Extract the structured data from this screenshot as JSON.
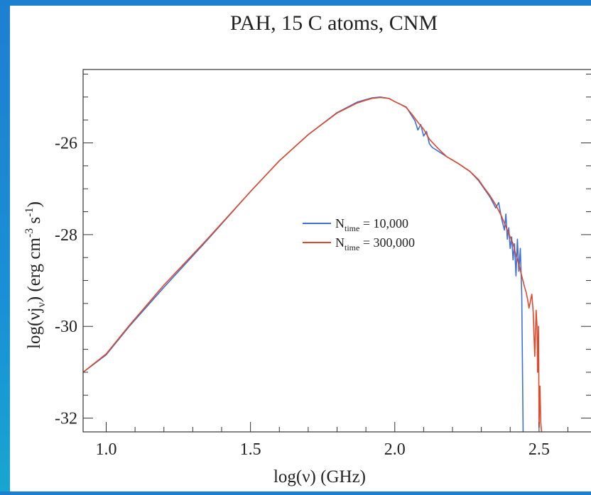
{
  "chart_data": {
    "type": "line",
    "title": "PAH, 15 C atoms, CNM",
    "xlabel": "log(ν) (GHz)",
    "ylabel": "log(νj_ν) (erg cm^-3 s^-1)",
    "ylabel_parts": {
      "pre": "log(νj",
      "sub": "ν",
      "mid": ") (erg cm",
      "sup1": "-3",
      "mid2": " s",
      "sup2": "-1",
      "post": ")"
    },
    "xlim": [
      0.92,
      2.68
    ],
    "ylim": [
      -32.3,
      -24.4
    ],
    "x_ticks": [
      1.0,
      1.5,
      2.0,
      2.5
    ],
    "x_tick_labels": [
      "1.0",
      "1.5",
      "2.0",
      "2.5"
    ],
    "y_ticks": [
      -32,
      -30,
      -28,
      -26
    ],
    "y_tick_labels": [
      "-32",
      "-30",
      "-28",
      "-26"
    ],
    "legend_location": "center",
    "series": [
      {
        "name": "N_time = 10,000",
        "name_parts": {
          "base": "N",
          "sub": "time",
          "rest": " = 10,000"
        },
        "color": "#3f6fd8",
        "x": [
          0.92,
          1.0,
          1.08,
          1.2,
          1.35,
          1.5,
          1.6,
          1.7,
          1.8,
          1.87,
          1.92,
          1.95,
          1.98,
          2.0,
          2.02,
          2.04,
          2.06,
          2.07,
          2.08,
          2.09,
          2.1,
          2.11,
          2.12,
          2.13,
          2.15,
          2.18,
          2.22,
          2.26,
          2.29,
          2.31,
          2.33,
          2.35,
          2.36,
          2.37,
          2.38,
          2.385,
          2.39,
          2.395,
          2.4,
          2.405,
          2.41,
          2.415,
          2.42,
          2.425,
          2.43,
          2.435,
          2.44,
          2.445,
          2.45,
          2.455,
          2.46
        ],
        "y": [
          -31.0,
          -30.62,
          -30.0,
          -29.15,
          -28.12,
          -27.06,
          -26.39,
          -25.82,
          -25.34,
          -25.11,
          -25.02,
          -25.0,
          -25.03,
          -25.1,
          -25.16,
          -25.22,
          -25.42,
          -25.52,
          -25.72,
          -25.6,
          -25.85,
          -25.75,
          -26.02,
          -26.1,
          -26.18,
          -26.3,
          -26.45,
          -26.62,
          -26.82,
          -27.0,
          -27.18,
          -27.42,
          -27.3,
          -27.65,
          -27.9,
          -27.55,
          -28.1,
          -27.85,
          -28.3,
          -28.05,
          -28.55,
          -28.2,
          -28.9,
          -28.1,
          -28.8,
          -28.3,
          -29.3,
          -32.4,
          -32.4,
          -32.4,
          -32.4
        ]
      },
      {
        "name": "N_time = 300,000",
        "name_parts": {
          "base": "N",
          "sub": "time",
          "rest": " = 300,000"
        },
        "color": "#e04a2c",
        "x": [
          0.92,
          1.0,
          1.08,
          1.2,
          1.35,
          1.5,
          1.6,
          1.7,
          1.8,
          1.87,
          1.92,
          1.95,
          1.98,
          2.0,
          2.02,
          2.04,
          2.06,
          2.08,
          2.1,
          2.12,
          2.15,
          2.18,
          2.22,
          2.26,
          2.29,
          2.31,
          2.33,
          2.35,
          2.37,
          2.39,
          2.41,
          2.42,
          2.43,
          2.44,
          2.45,
          2.455,
          2.46,
          2.465,
          2.47,
          2.475,
          2.48,
          2.485,
          2.49,
          2.493,
          2.495,
          2.498,
          2.5,
          2.503,
          2.506,
          2.51,
          2.52,
          2.53
        ],
        "y": [
          -31.0,
          -30.6,
          -29.98,
          -29.1,
          -28.1,
          -27.06,
          -26.39,
          -25.82,
          -25.35,
          -25.13,
          -25.03,
          -25.01,
          -25.03,
          -25.1,
          -25.16,
          -25.23,
          -25.38,
          -25.55,
          -25.7,
          -25.92,
          -26.12,
          -26.3,
          -26.45,
          -26.62,
          -26.8,
          -26.98,
          -27.15,
          -27.35,
          -27.6,
          -27.9,
          -28.2,
          -28.45,
          -28.65,
          -28.9,
          -29.15,
          -29.25,
          -29.4,
          -29.6,
          -29.45,
          -29.3,
          -29.7,
          -30.65,
          -29.65,
          -30.0,
          -31.0,
          -30.0,
          -32.2,
          -31.3,
          -32.1,
          -32.4,
          -32.4,
          -32.4
        ]
      }
    ]
  }
}
